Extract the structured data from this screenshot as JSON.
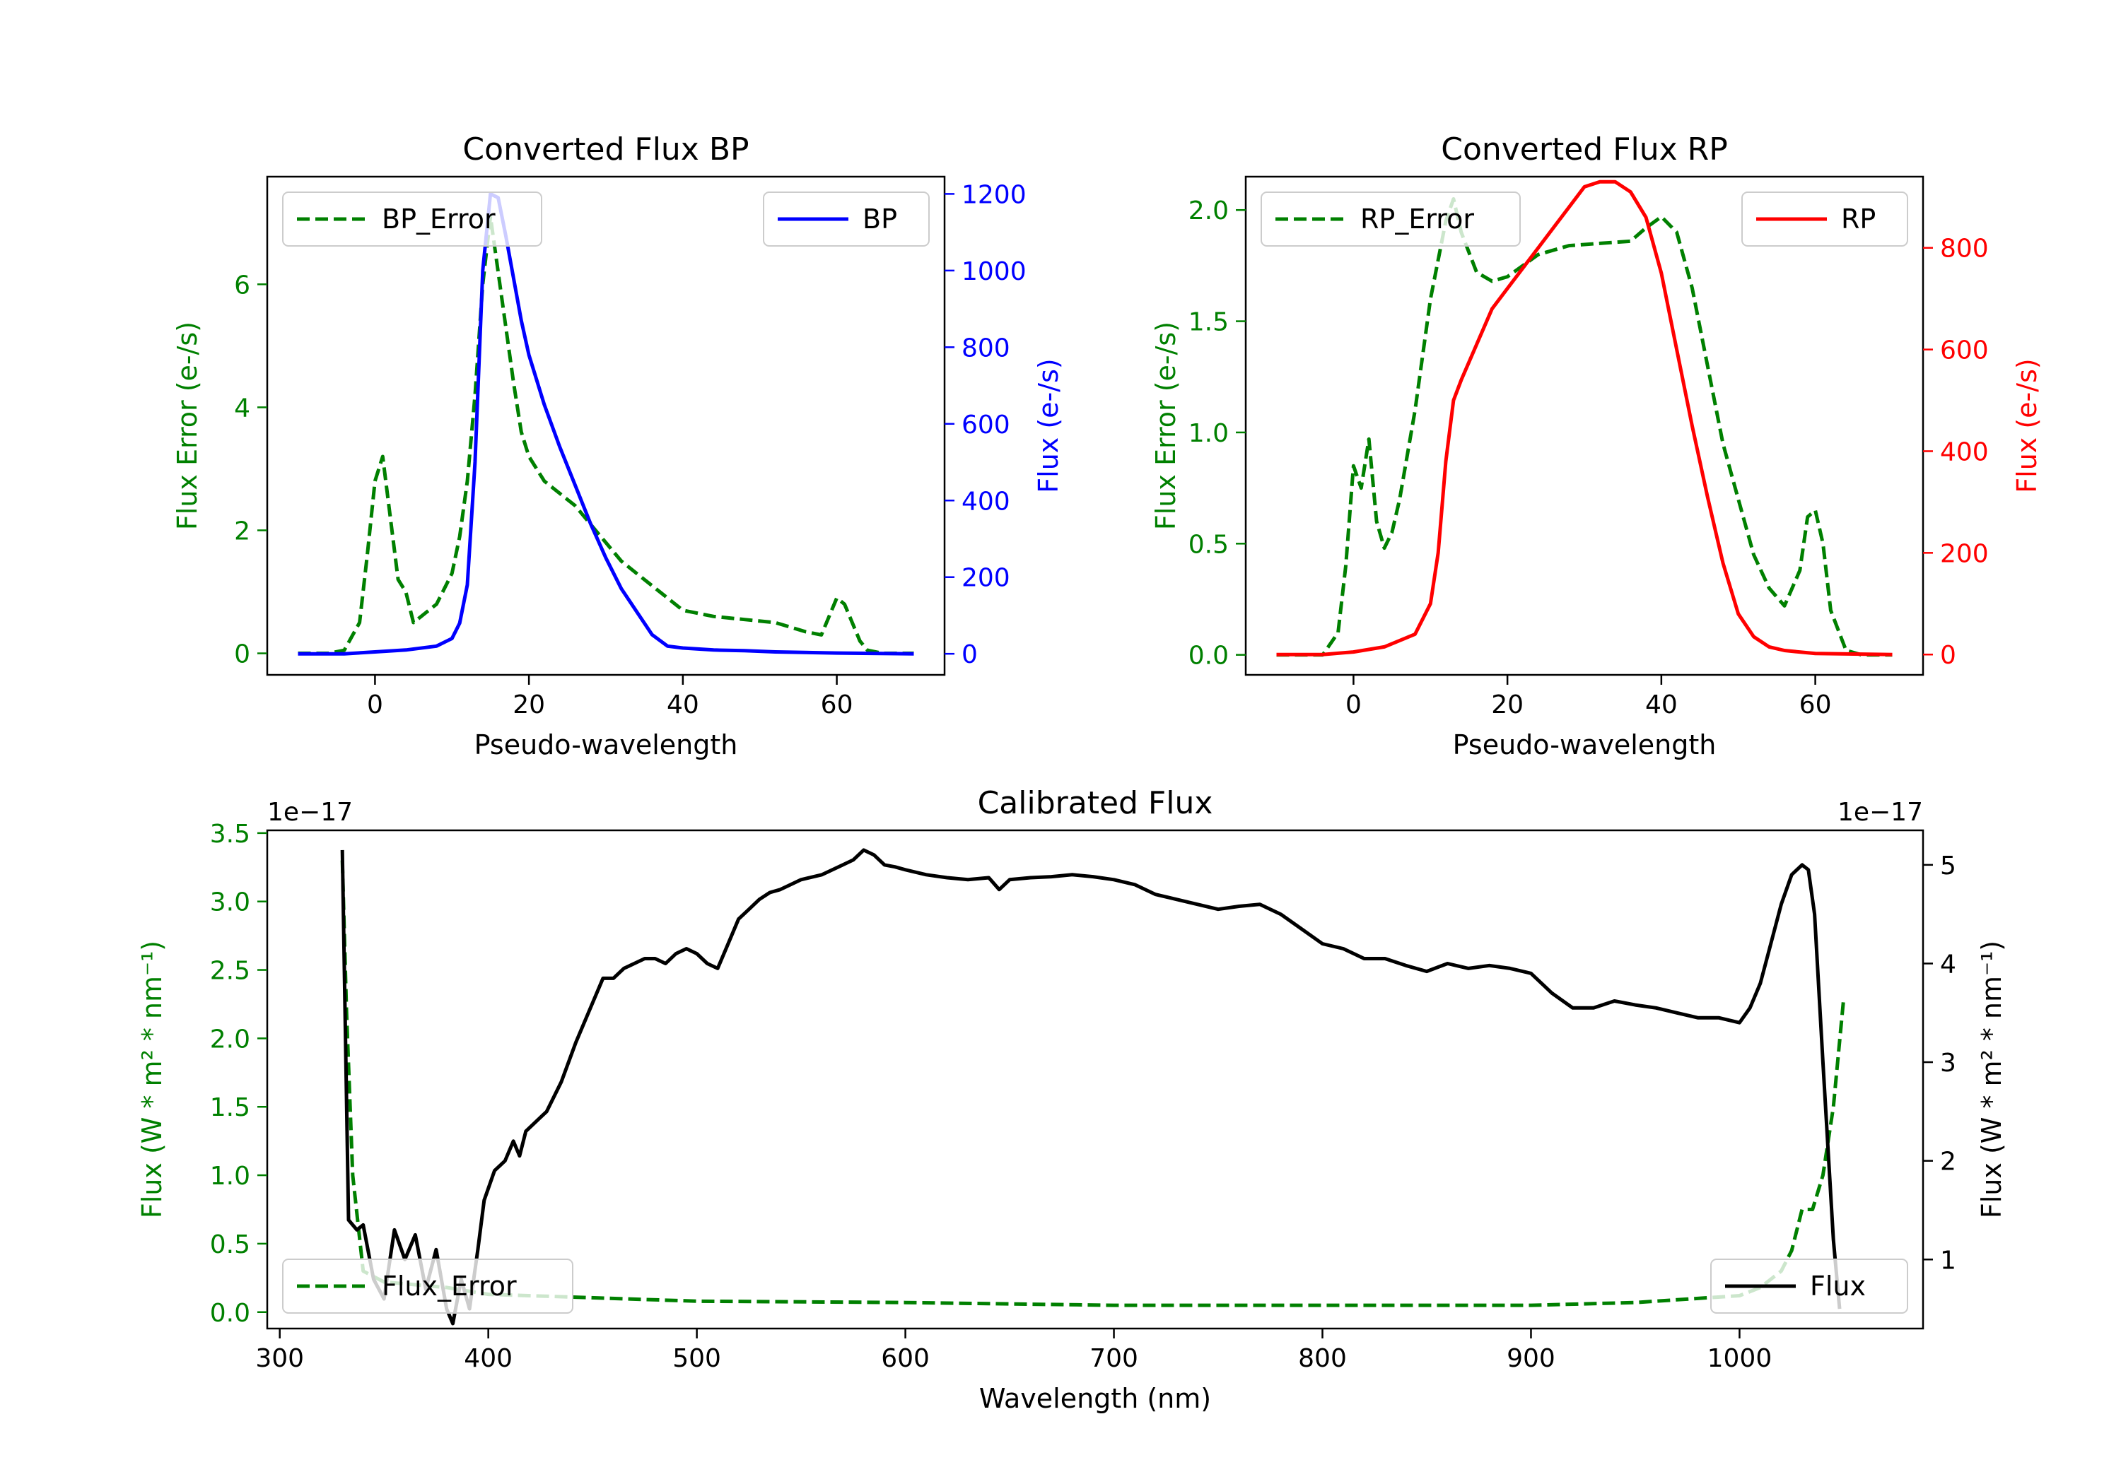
{
  "figure": {
    "description": "Gaia XP spectra: converted BP/RP flux and calibrated flux"
  },
  "colors": {
    "error": "#008000",
    "bp": "#0000ff",
    "rp": "#ff0000",
    "flux": "#000000",
    "axis": "#000000"
  },
  "chart_data": [
    {
      "id": "bp",
      "type": "line",
      "title": "Converted Flux BP",
      "xlabel": "Pseudo-wavelength",
      "ylabel_left": "Flux Error (e-/s)",
      "ylabel_right": "Flux (e-/s)",
      "xlim": [
        -14,
        74
      ],
      "ylim_left": [
        -0.35,
        7.75
      ],
      "ylim_right": [
        -55,
        1245
      ],
      "xticks": [
        0,
        20,
        40,
        60
      ],
      "yticks_left": [
        0,
        2,
        4,
        6
      ],
      "yticks_right": [
        0,
        200,
        400,
        600,
        800,
        1000,
        1200
      ],
      "legend_left_position": "top-left",
      "legend_right_position": "top-right",
      "series": [
        {
          "name": "BP_Error",
          "axis": "left",
          "color": "#008000",
          "style": "dashed",
          "x": [
            -10,
            -6,
            -4,
            -2,
            -1,
            0,
            1,
            2,
            3,
            4,
            5,
            6,
            8,
            10,
            11,
            12,
            13,
            14,
            15,
            16,
            17,
            18,
            19,
            20,
            22,
            24,
            26,
            28,
            30,
            32,
            34,
            36,
            38,
            40,
            44,
            48,
            52,
            56,
            58,
            59,
            60,
            61,
            62,
            63,
            64,
            66,
            70
          ],
          "values": [
            0,
            0,
            0.05,
            0.5,
            1.6,
            2.8,
            3.2,
            2.2,
            1.2,
            1.0,
            0.5,
            0.6,
            0.8,
            1.3,
            1.9,
            2.8,
            4.2,
            6.0,
            7.1,
            6.2,
            5.3,
            4.4,
            3.6,
            3.2,
            2.8,
            2.6,
            2.4,
            2.1,
            1.8,
            1.5,
            1.3,
            1.1,
            0.9,
            0.7,
            0.6,
            0.55,
            0.5,
            0.35,
            0.3,
            0.6,
            0.9,
            0.8,
            0.5,
            0.2,
            0.05,
            0,
            0
          ]
        },
        {
          "name": "BP",
          "axis": "right",
          "color": "#0000ff",
          "style": "solid",
          "x": [
            -10,
            -4,
            0,
            4,
            8,
            10,
            11,
            12,
            13,
            14,
            15,
            16,
            17,
            18,
            19,
            20,
            22,
            24,
            26,
            28,
            30,
            32,
            34,
            36,
            38,
            40,
            44,
            48,
            52,
            60,
            70
          ],
          "values": [
            0,
            0,
            5,
            10,
            20,
            40,
            80,
            180,
            500,
            1000,
            1200,
            1190,
            1090,
            980,
            870,
            780,
            650,
            540,
            440,
            340,
            250,
            170,
            110,
            50,
            20,
            15,
            10,
            8,
            5,
            2,
            0
          ]
        }
      ]
    },
    {
      "id": "rp",
      "type": "line",
      "title": "Converted Flux RP",
      "xlabel": "Pseudo-wavelength",
      "ylabel_left": "Flux Error (e-/s)",
      "ylabel_right": "Flux (e-/s)",
      "xlim": [
        -14,
        74
      ],
      "ylim_left": [
        -0.09,
        2.15
      ],
      "ylim_right": [
        -40,
        940
      ],
      "xticks": [
        0,
        20,
        40,
        60
      ],
      "yticks_left": [
        "0.0",
        "0.5",
        "1.0",
        "1.5",
        "2.0"
      ],
      "yticks_right": [
        0,
        200,
        400,
        600,
        800
      ],
      "legend_left_position": "top-left",
      "legend_right_position": "top-right",
      "series": [
        {
          "name": "RP_Error",
          "axis": "left",
          "color": "#008000",
          "style": "dashed",
          "x": [
            -10,
            -4,
            -2,
            -1,
            0,
            1,
            2,
            3,
            4,
            5,
            6,
            8,
            10,
            12,
            13,
            14,
            16,
            18,
            20,
            24,
            28,
            32,
            36,
            38,
            40,
            42,
            44,
            46,
            48,
            50,
            52,
            54,
            56,
            58,
            59,
            60,
            61,
            62,
            64,
            66,
            70
          ],
          "values": [
            0,
            0,
            0.1,
            0.4,
            0.85,
            0.75,
            0.97,
            0.6,
            0.48,
            0.55,
            0.7,
            1.1,
            1.6,
            1.95,
            2.05,
            1.9,
            1.72,
            1.68,
            1.7,
            1.8,
            1.84,
            1.85,
            1.86,
            1.92,
            1.97,
            1.9,
            1.65,
            1.3,
            0.95,
            0.7,
            0.45,
            0.3,
            0.22,
            0.38,
            0.62,
            0.65,
            0.5,
            0.2,
            0.02,
            0,
            0
          ]
        },
        {
          "name": "RP",
          "axis": "right",
          "color": "#ff0000",
          "style": "solid",
          "x": [
            -10,
            -4,
            0,
            4,
            8,
            10,
            11,
            12,
            13,
            14,
            16,
            18,
            20,
            22,
            24,
            26,
            28,
            30,
            32,
            34,
            36,
            38,
            40,
            42,
            44,
            46,
            48,
            50,
            52,
            54,
            56,
            60,
            70
          ],
          "values": [
            0,
            0,
            5,
            15,
            40,
            100,
            200,
            380,
            500,
            540,
            610,
            680,
            720,
            760,
            800,
            840,
            880,
            920,
            930,
            930,
            910,
            860,
            750,
            600,
            450,
            310,
            180,
            80,
            35,
            15,
            8,
            2,
            0
          ]
        }
      ]
    },
    {
      "id": "calibrated",
      "type": "line",
      "title": "Calibrated Flux",
      "xlabel": "Wavelength (nm)",
      "ylabel_left": "Flux (W * m² * nm⁻¹)",
      "ylabel_right": "Flux (W * m² * nm⁻¹)",
      "offset_left": "1e−17",
      "offset_right": "1e−17",
      "xlim": [
        294,
        1088
      ],
      "ylim_left": [
        -0.12,
        3.52
      ],
      "ylim_right": [
        0.3,
        5.35
      ],
      "xticks": [
        300,
        400,
        500,
        600,
        700,
        800,
        900,
        1000
      ],
      "yticks_left": [
        "0.0",
        "0.5",
        "1.0",
        "1.5",
        "2.0",
        "2.5",
        "3.0",
        "3.5"
      ],
      "yticks_right": [
        1,
        2,
        3,
        4,
        5
      ],
      "legend_left_position": "bottom-left",
      "legend_right_position": "bottom-right",
      "series": [
        {
          "name": "Flux_Error",
          "axis": "left",
          "color": "#008000",
          "style": "dashed",
          "x": [
            330,
            332,
            335,
            340,
            350,
            380,
            400,
            500,
            600,
            700,
            800,
            900,
            950,
            1000,
            1010,
            1020,
            1025,
            1030,
            1035,
            1040,
            1045,
            1050
          ],
          "values": [
            3.3,
            2.2,
            1.0,
            0.3,
            0.22,
            0.18,
            0.13,
            0.08,
            0.07,
            0.05,
            0.05,
            0.05,
            0.07,
            0.12,
            0.18,
            0.3,
            0.45,
            0.75,
            0.75,
            1.0,
            1.5,
            2.3
          ]
        },
        {
          "name": "Flux",
          "axis": "right",
          "color": "#000000",
          "style": "solid",
          "x": [
            330,
            333,
            337,
            340,
            345,
            350,
            355,
            360,
            365,
            370,
            375,
            380,
            383,
            387,
            391,
            395,
            398,
            403,
            408,
            412,
            415,
            418,
            423,
            428,
            435,
            442,
            450,
            455,
            460,
            465,
            470,
            475,
            480,
            485,
            490,
            495,
            500,
            505,
            510,
            515,
            520,
            525,
            530,
            535,
            540,
            545,
            550,
            560,
            570,
            575,
            580,
            585,
            590,
            595,
            600,
            610,
            620,
            630,
            640,
            645,
            650,
            655,
            660,
            670,
            680,
            690,
            700,
            710,
            720,
            730,
            740,
            750,
            760,
            770,
            780,
            790,
            800,
            810,
            820,
            830,
            840,
            850,
            860,
            870,
            880,
            890,
            900,
            910,
            920,
            930,
            940,
            950,
            960,
            970,
            980,
            990,
            1000,
            1005,
            1010,
            1015,
            1020,
            1025,
            1030,
            1033,
            1036,
            1040,
            1045,
            1048
          ],
          "values": [
            5.15,
            1.4,
            1.3,
            1.35,
            0.8,
            0.6,
            1.3,
            1.0,
            1.25,
            0.7,
            1.1,
            0.5,
            0.35,
            0.8,
            0.5,
            1.1,
            1.6,
            1.9,
            2.0,
            2.2,
            2.05,
            2.3,
            2.4,
            2.5,
            2.8,
            3.2,
            3.6,
            3.85,
            3.85,
            3.95,
            4.0,
            4.05,
            4.05,
            4.0,
            4.1,
            4.15,
            4.1,
            4.0,
            3.95,
            4.2,
            4.45,
            4.55,
            4.65,
            4.72,
            4.75,
            4.8,
            4.85,
            4.9,
            5.0,
            5.05,
            5.15,
            5.1,
            5.0,
            4.98,
            4.95,
            4.9,
            4.87,
            4.85,
            4.87,
            4.75,
            4.85,
            4.86,
            4.87,
            4.88,
            4.9,
            4.88,
            4.85,
            4.8,
            4.7,
            4.65,
            4.6,
            4.55,
            4.58,
            4.6,
            4.5,
            4.35,
            4.2,
            4.15,
            4.05,
            4.05,
            3.98,
            3.92,
            4.0,
            3.95,
            3.98,
            3.95,
            3.9,
            3.7,
            3.55,
            3.55,
            3.62,
            3.58,
            3.55,
            3.5,
            3.45,
            3.45,
            3.4,
            3.55,
            3.8,
            4.2,
            4.6,
            4.9,
            5.0,
            4.95,
            4.5,
            3.0,
            1.2,
            0.5
          ]
        }
      ]
    }
  ]
}
